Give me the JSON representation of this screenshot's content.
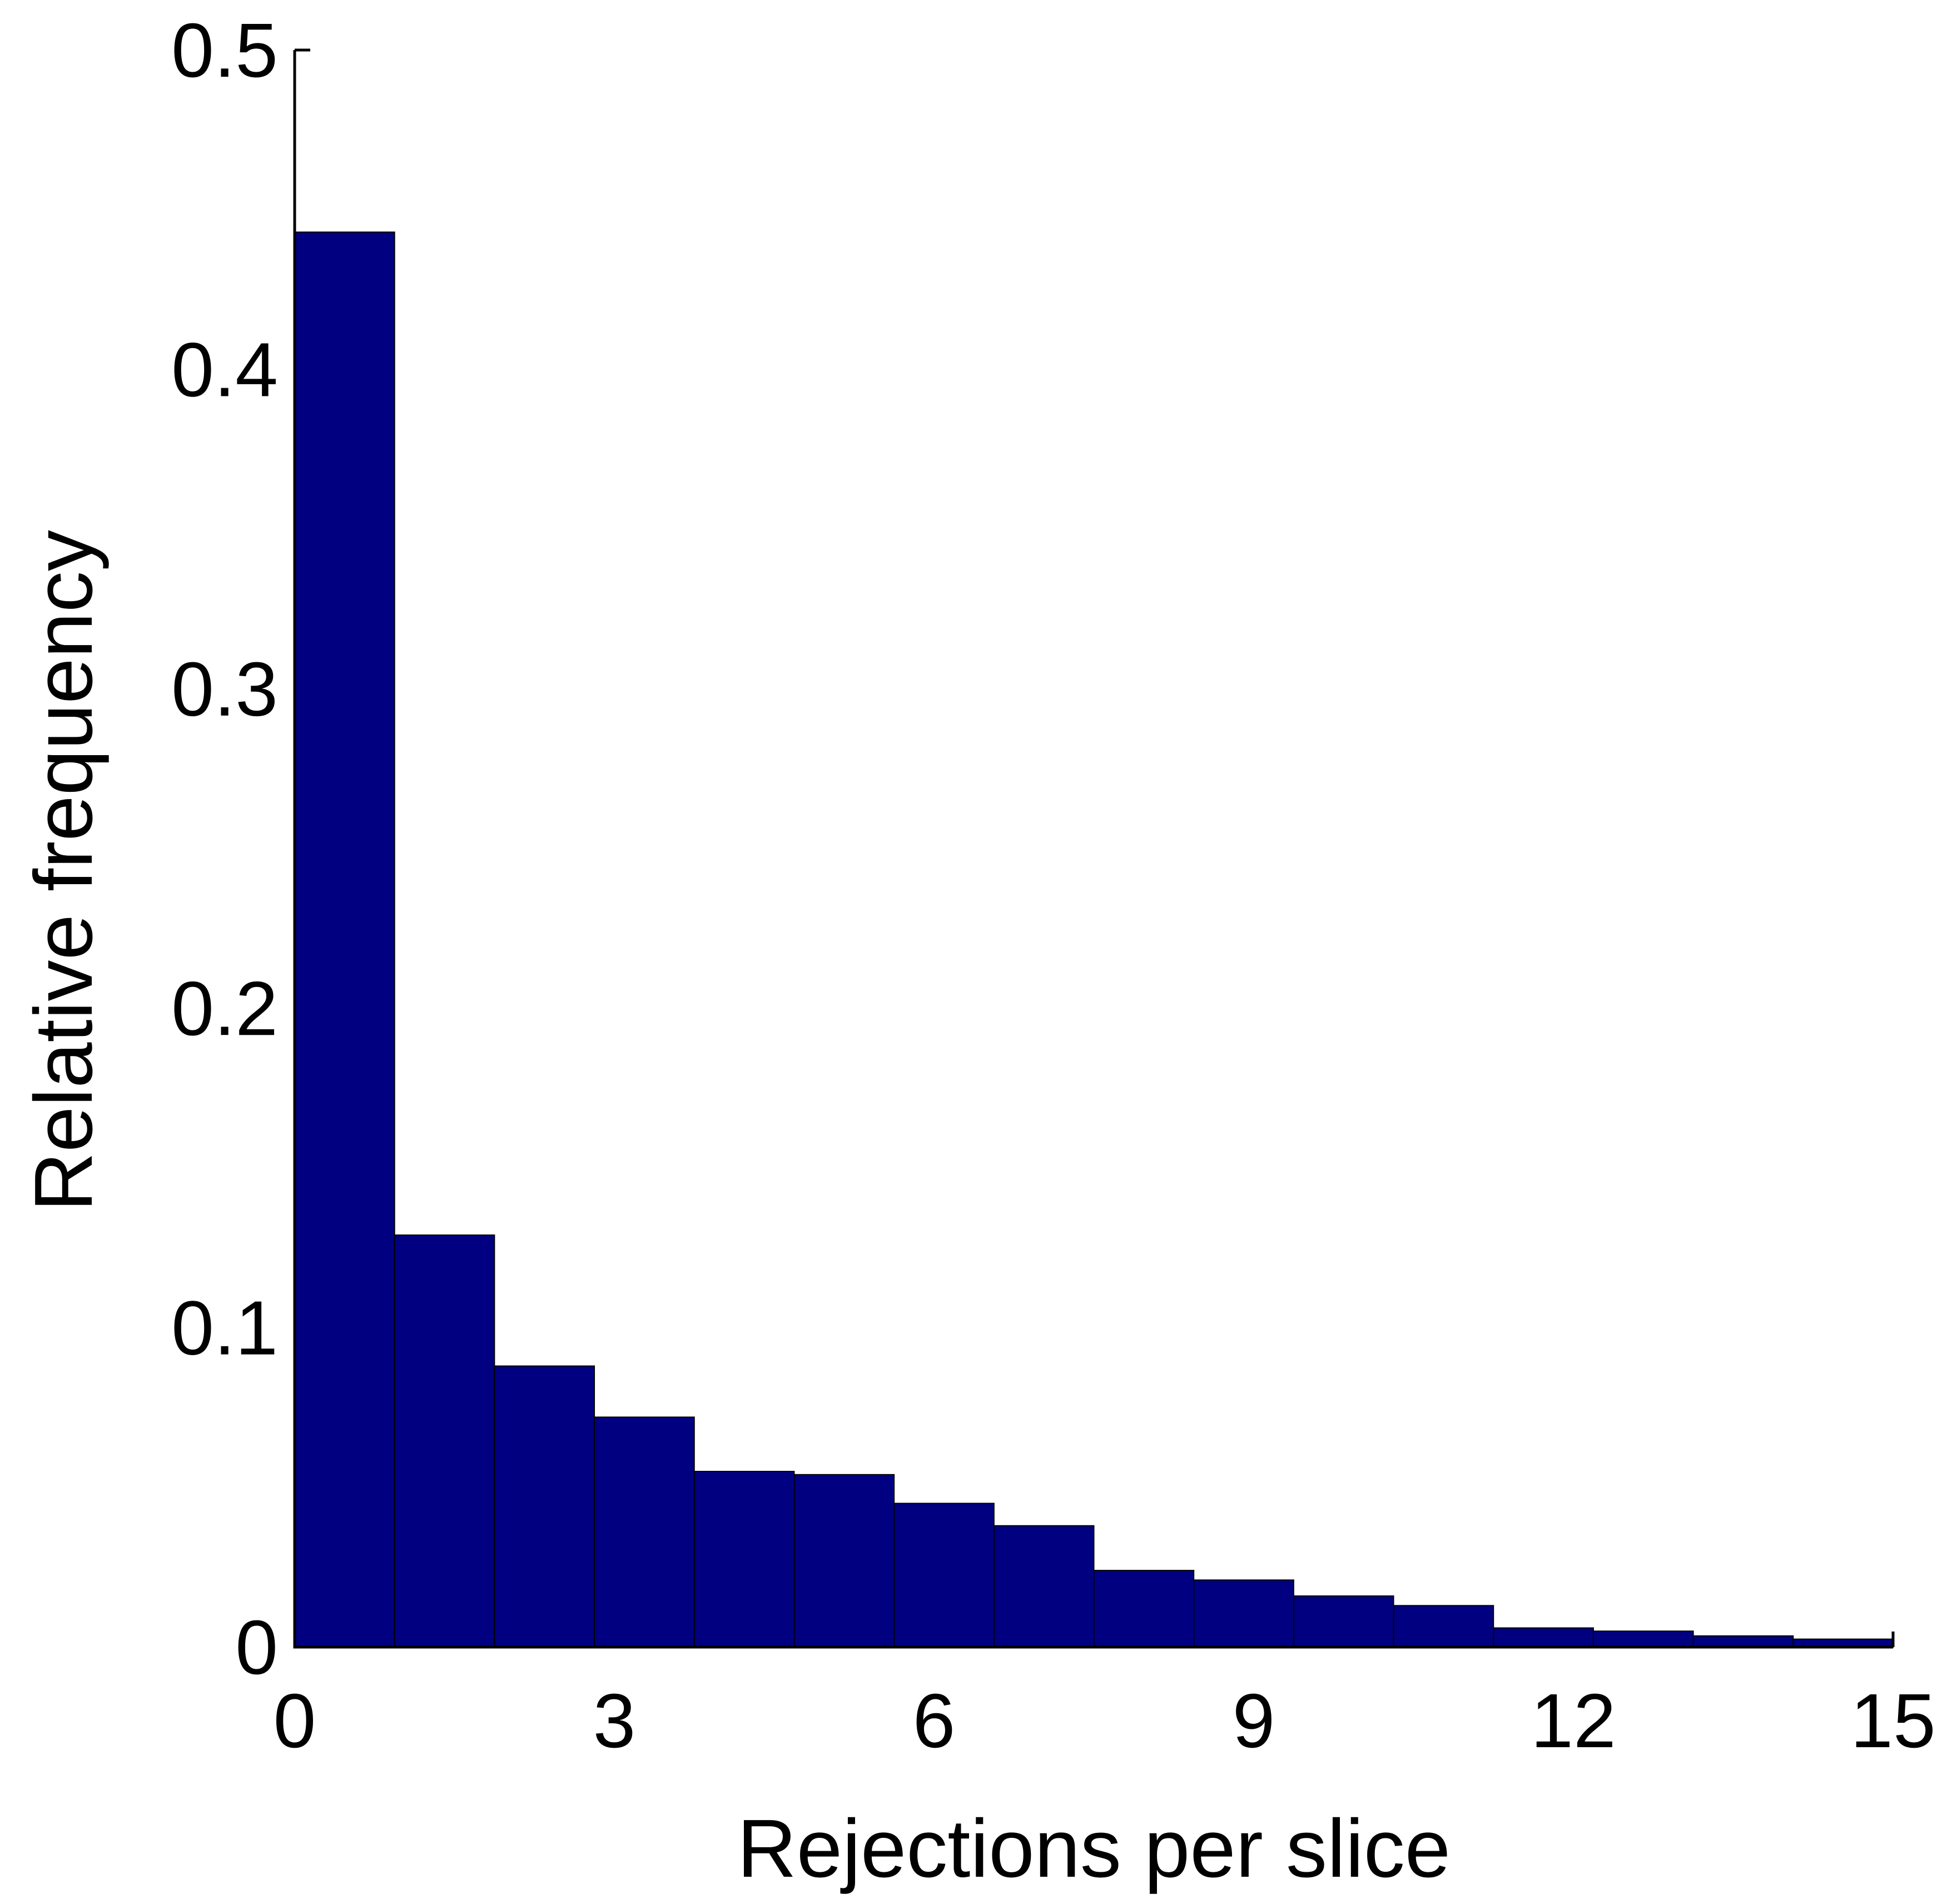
{
  "chart_data": {
    "type": "bar",
    "xlabel": "Rejections per slice",
    "ylabel": "Relative frequency",
    "title": "",
    "xlim": [
      0,
      15
    ],
    "ylim": [
      0,
      0.5
    ],
    "xticks": [
      "0",
      "3",
      "6",
      "9",
      "12",
      "15"
    ],
    "yticks": [
      "0",
      "0.1",
      "0.2",
      "0.3",
      "0.4",
      "0.5"
    ],
    "grid": false,
    "bar_color": "#000080",
    "bins": [
      {
        "x0": 0.0,
        "x1": 0.9375,
        "value": 0.443
      },
      {
        "x0": 0.9375,
        "x1": 1.875,
        "value": 0.129
      },
      {
        "x0": 1.875,
        "x1": 2.8125,
        "value": 0.088
      },
      {
        "x0": 2.8125,
        "x1": 3.75,
        "value": 0.072
      },
      {
        "x0": 3.75,
        "x1": 4.6875,
        "value": 0.055
      },
      {
        "x0": 4.6875,
        "x1": 5.625,
        "value": 0.054
      },
      {
        "x0": 5.625,
        "x1": 6.5625,
        "value": 0.045
      },
      {
        "x0": 6.5625,
        "x1": 7.5,
        "value": 0.038
      },
      {
        "x0": 7.5,
        "x1": 8.4375,
        "value": 0.024
      },
      {
        "x0": 8.4375,
        "x1": 9.375,
        "value": 0.021
      },
      {
        "x0": 9.375,
        "x1": 10.3125,
        "value": 0.016
      },
      {
        "x0": 10.3125,
        "x1": 11.25,
        "value": 0.013
      },
      {
        "x0": 11.25,
        "x1": 12.1875,
        "value": 0.006
      },
      {
        "x0": 12.1875,
        "x1": 13.125,
        "value": 0.005
      },
      {
        "x0": 13.125,
        "x1": 14.0625,
        "value": 0.0035
      },
      {
        "x0": 14.0625,
        "x1": 15.0,
        "value": 0.0025
      }
    ]
  }
}
